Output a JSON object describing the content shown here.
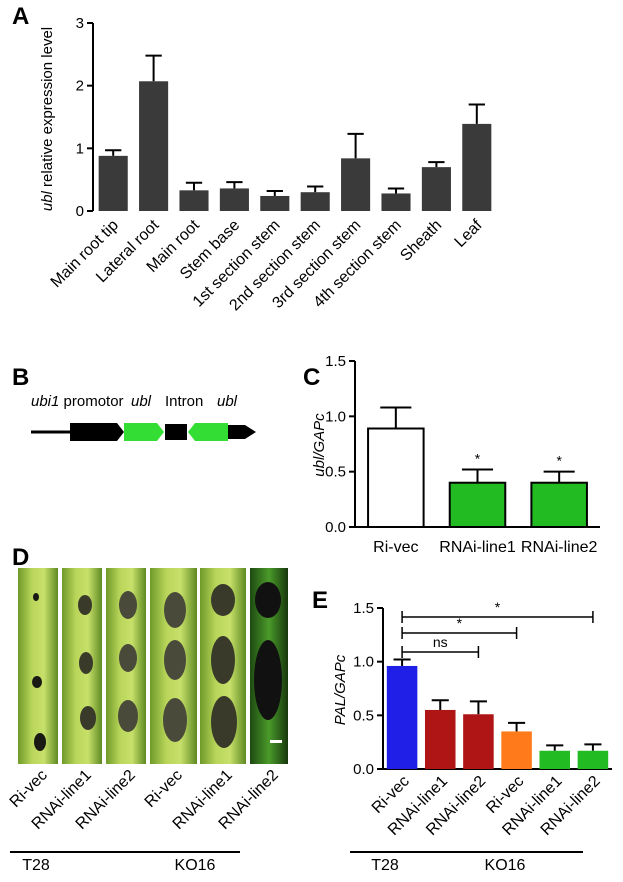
{
  "panels": {
    "a": "A",
    "b": "B",
    "c": "C",
    "d": "D",
    "e": "E"
  },
  "chart_data": [
    {
      "id": "A",
      "type": "bar",
      "ylabel_italic": "ubl",
      "ylabel_rest": " relative expression level",
      "ylim": [
        0,
        3
      ],
      "yticks": [
        0,
        1,
        2,
        3
      ],
      "categories": [
        "Main root tip",
        "Lateral root",
        "Main root",
        "Stem base",
        "1st section stem",
        "2nd section stem",
        "3rd section stem",
        "4th section stem",
        "Sheath",
        "Leaf"
      ],
      "values": [
        0.88,
        2.07,
        0.33,
        0.36,
        0.24,
        0.3,
        0.84,
        0.28,
        0.7,
        1.39
      ],
      "errors": [
        0.09,
        0.41,
        0.12,
        0.1,
        0.08,
        0.09,
        0.39,
        0.08,
        0.08,
        0.31
      ],
      "bar_color": "#3a3a3a"
    },
    {
      "id": "C",
      "type": "bar",
      "ylabel": "ubl/GAPc",
      "ylim": [
        0,
        1.5
      ],
      "yticks": [
        "0.0",
        "0.5",
        "1.0",
        "1.5"
      ],
      "categories": [
        "Ri-vec",
        "RNAi-line1",
        "RNAi-line2"
      ],
      "values": [
        0.89,
        0.4,
        0.4
      ],
      "errors": [
        0.19,
        0.12,
        0.1
      ],
      "colors": [
        "#ffffff",
        "#22bb22",
        "#22bb22"
      ],
      "significance": [
        "",
        "*",
        "*"
      ]
    },
    {
      "id": "E",
      "type": "bar",
      "ylabel": "PAL/GAPc",
      "ylim": [
        0,
        1.5
      ],
      "yticks": [
        "0.0",
        "0.5",
        "1.0",
        "1.5"
      ],
      "categories": [
        "Ri-vec",
        "RNAi-line1",
        "RNAi-line2",
        "Ri-vec",
        "RNAi-line1",
        "RNAi-line2"
      ],
      "values": [
        0.96,
        0.55,
        0.51,
        0.35,
        0.17,
        0.17
      ],
      "errors": [
        0.06,
        0.09,
        0.12,
        0.08,
        0.05,
        0.06
      ],
      "colors": [
        "#1f1fe8",
        "#b01515",
        "#b01515",
        "#ff7a1a",
        "#22bb22",
        "#22bb22"
      ],
      "groups": [
        "T28",
        "KO16"
      ],
      "brackets": [
        {
          "label": "ns",
          "from": 0,
          "to": 2
        },
        {
          "label": "*",
          "from": 0,
          "to": 3
        },
        {
          "label": "*",
          "from": 0,
          "to": 5
        }
      ]
    }
  ],
  "panel_b": {
    "promoter_label": "ubi1 promotor",
    "promoter_italic": "ubi1",
    "promoter_rest": " promotor",
    "ubl_left": "ubl",
    "intron": "Intron",
    "ubl_right": "ubl",
    "colors": {
      "dark": "#000000",
      "green": "#33dd33"
    }
  },
  "panel_d": {
    "labels": [
      "Ri-vec",
      "RNAi-line1",
      "RNAi-line2",
      "Ri-vec",
      "RNAi-line1",
      "RNAi-line2"
    ],
    "groups": [
      "T28",
      "KO16"
    ]
  }
}
